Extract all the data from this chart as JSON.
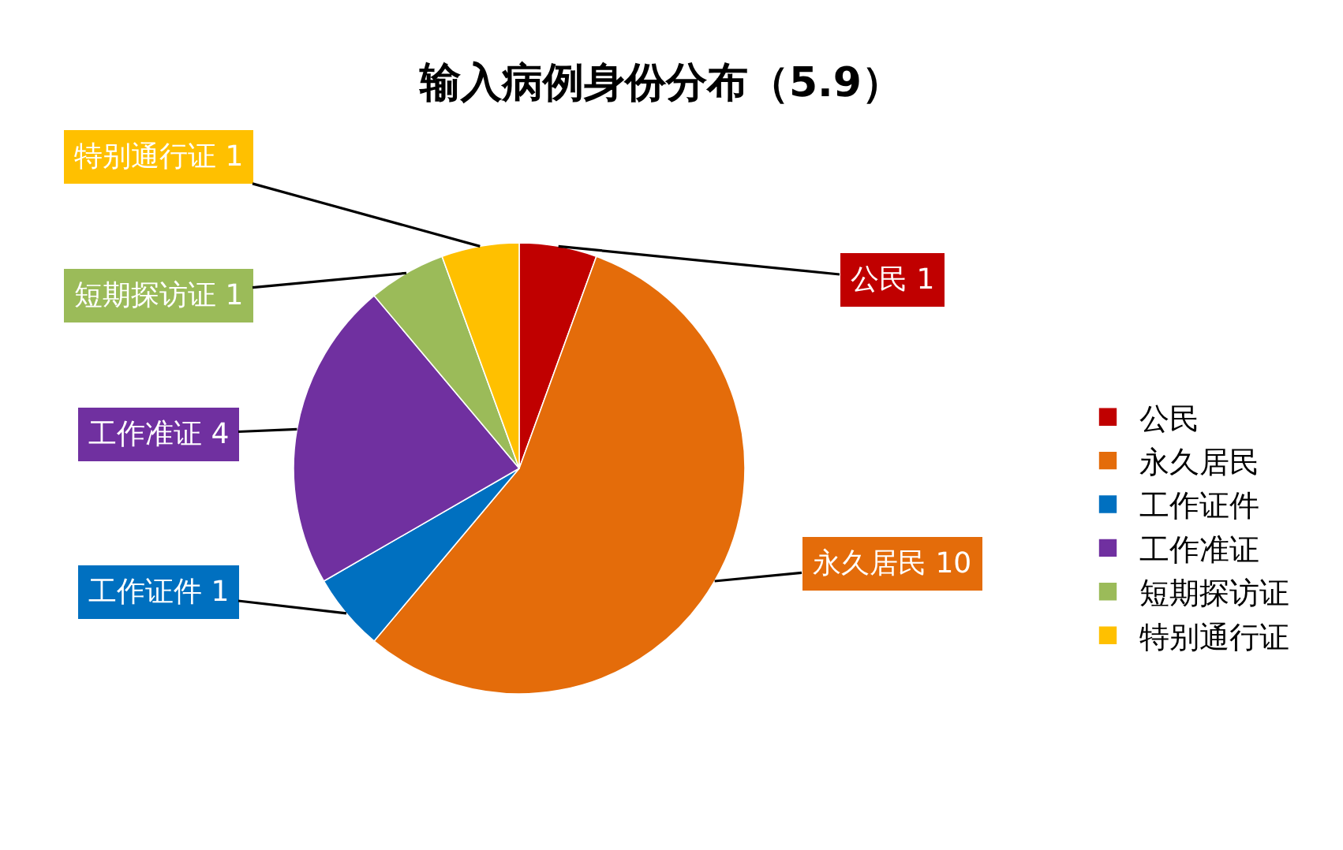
{
  "chart_data": {
    "type": "pie",
    "title": "输入病例身份分布（5.9）",
    "categories": [
      "公民",
      "永久居民",
      "工作证件",
      "工作准证",
      "短期探访证",
      "特别通行证"
    ],
    "values": [
      1,
      10,
      1,
      4,
      1,
      1
    ],
    "value_labels": [
      "公民 1",
      "永久居民 10",
      "工作证件 1",
      "工作准证 4",
      "短期探访证 1",
      "特别通行证 1"
    ],
    "colors": [
      "#c00000",
      "#e46c0a",
      "#0070c0",
      "#7030a0",
      "#9bbb59",
      "#ffc000"
    ],
    "legend": "right"
  }
}
